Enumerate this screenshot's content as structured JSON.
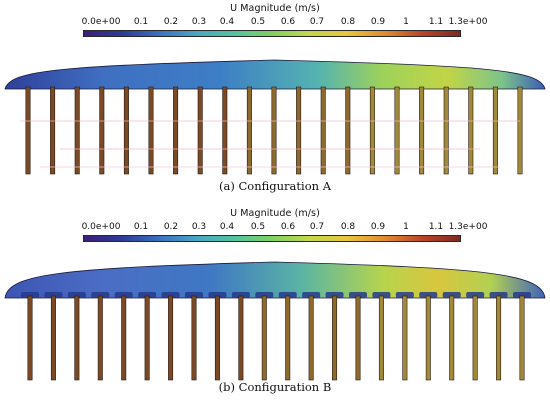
{
  "colorbar": {
    "title": "U Magnitude (m/s)",
    "ticks": [
      "0.0e+00",
      "0.1",
      "0.2",
      "0.3",
      "0.4",
      "0.5",
      "0.6",
      "0.7",
      "0.8",
      "0.9",
      "1",
      "1.1",
      "1.3e+00"
    ],
    "colors": [
      "#3b1f7a",
      "#2c3b96",
      "#3d6fc0",
      "#4aa6c4",
      "#54c49e",
      "#7fd062",
      "#c3d84a",
      "#e9c63e",
      "#e08a2f",
      "#b9452a",
      "#7a2a22"
    ]
  },
  "panels": [
    {
      "caption": "(a)  Configuration A"
    },
    {
      "caption": "(b)  Configuration B"
    }
  ]
}
